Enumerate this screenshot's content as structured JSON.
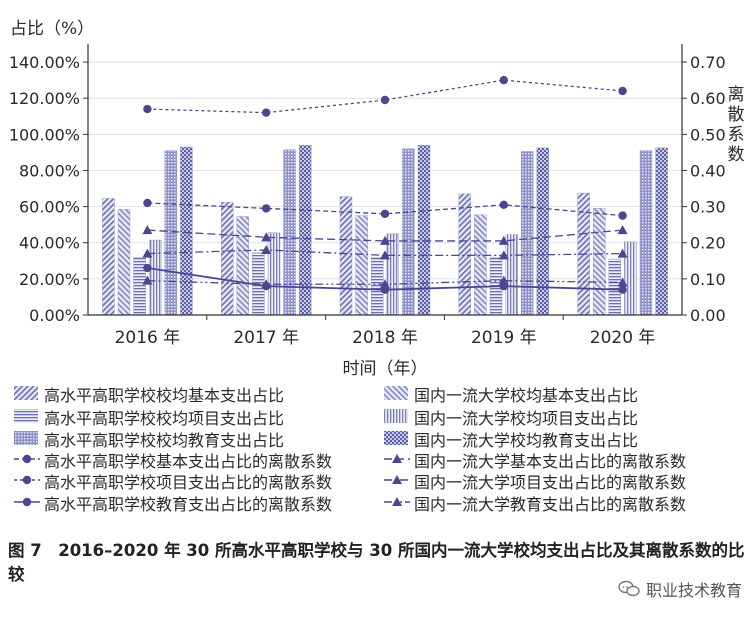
{
  "chart_data": {
    "type": "bar",
    "y_left_title": "占比（%）",
    "y_right_title": "离散系数",
    "xlabel": "时间（年）",
    "categories": [
      "2016 年",
      "2017 年",
      "2018 年",
      "2019 年",
      "2020 年"
    ],
    "ylim_left": [
      0,
      150
    ],
    "ylim_right": [
      0,
      0.75
    ],
    "y_left_ticks": [
      "0.00%",
      "20.00%",
      "40.00%",
      "60.00%",
      "80.00%",
      "100.00%",
      "120.00%",
      "140.00%"
    ],
    "y_right_ticks": [
      "0.00",
      "0.10",
      "0.20",
      "0.30",
      "0.40",
      "0.50",
      "0.60",
      "0.70"
    ],
    "bar_series": [
      {
        "name": "高水平高职学校校均基本支出占比",
        "pattern": "diag",
        "values": [
          64.5,
          62.5,
          65.5,
          67.0,
          67.5
        ]
      },
      {
        "name": "国内一流大学校均基本支出占比",
        "pattern": "diag2",
        "values": [
          58.5,
          54.5,
          55.0,
          55.5,
          59.0
        ]
      },
      {
        "name": "高水平高职学校校均项目支出占比",
        "pattern": "hlines",
        "values": [
          32.0,
          34.5,
          32.0,
          32.0,
          31.0
        ]
      },
      {
        "name": "国内一流大学校均项目支出占比",
        "pattern": "vlines",
        "values": [
          41.5,
          45.5,
          45.0,
          44.5,
          40.5
        ]
      },
      {
        "name": "高水平高职学校校均教育支出占比",
        "pattern": "vdots",
        "values": [
          91.0,
          91.5,
          92.0,
          90.5,
          91.0
        ]
      },
      {
        "name": "国内一流大学校均教育支出占比",
        "pattern": "check",
        "values": [
          93.0,
          94.0,
          94.0,
          92.5,
          92.5
        ]
      }
    ],
    "line_series": [
      {
        "name": "高水平高职学校基本支出占比的离散系数",
        "style": "short-dash",
        "marker": "circle",
        "values": [
          0.31,
          0.295,
          0.28,
          0.305,
          0.275
        ]
      },
      {
        "name": "国内一流大学基本支出占比的离散系数",
        "style": "dash",
        "marker": "triangle",
        "values": [
          0.235,
          0.215,
          0.205,
          0.205,
          0.235
        ]
      },
      {
        "name": "高水平高职学校项目支出占比的离散系数",
        "style": "dot",
        "marker": "circle",
        "values": [
          0.57,
          0.56,
          0.595,
          0.65,
          0.62
        ]
      },
      {
        "name": "国内一流大学项目支出占比的离散系数",
        "style": "dash-dot",
        "marker": "triangle",
        "values": [
          0.17,
          0.18,
          0.165,
          0.165,
          0.17
        ]
      },
      {
        "name": "高水平高职学校教育支出占比的离散系数",
        "style": "solid",
        "marker": "circle",
        "values": [
          0.13,
          0.08,
          0.07,
          0.08,
          0.07
        ]
      },
      {
        "name": "国内一流大学教育支出占比的离散系数",
        "style": "dash-dot-dot",
        "marker": "triangle",
        "values": [
          0.095,
          0.085,
          0.085,
          0.095,
          0.09
        ]
      }
    ],
    "colors": {
      "bar": "#6b6fb0",
      "bar_light": "#9a9dd0",
      "line": "#4a4790",
      "axis": "#333333"
    },
    "legend_position": "bottom"
  },
  "caption": "图 7　2016–2020 年 30 所高水平高职学校与 30 所国内一流大学校均支出占比及其离散系数的比较",
  "watermark": "职业技术教育",
  "icons": {
    "watermark": "chat-bubbles-icon"
  }
}
